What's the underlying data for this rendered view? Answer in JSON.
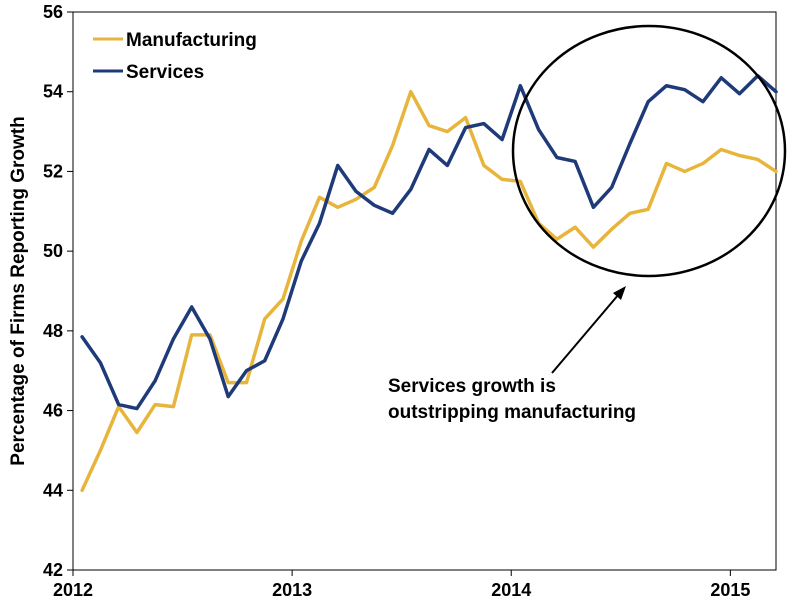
{
  "chart_data": {
    "type": "line",
    "title": "",
    "xlabel": "",
    "ylabel": "Percentage of Firms Reporting Growth",
    "ylim": [
      42,
      56
    ],
    "y_ticks": [
      42,
      44,
      46,
      48,
      50,
      52,
      54,
      56
    ],
    "x_ticks": [
      {
        "label": "2012",
        "month": 0
      },
      {
        "label": "2013",
        "month": 12
      },
      {
        "label": "2014",
        "month": 24
      },
      {
        "label": "2015",
        "month": 36
      }
    ],
    "x_range_months": [
      0,
      38.5
    ],
    "grid": false,
    "legend_position": "top-left",
    "series": [
      {
        "name": "Manufacturing",
        "color": "#E8B53C",
        "values": [
          44.0,
          45.0,
          46.1,
          45.45,
          46.15,
          46.1,
          47.9,
          47.9,
          46.7,
          46.7,
          48.3,
          48.8,
          50.25,
          51.35,
          51.1,
          51.3,
          51.6,
          52.65,
          54.0,
          53.15,
          53.0,
          53.35,
          52.15,
          51.8,
          51.75,
          50.7,
          50.3,
          50.6,
          50.1,
          50.55,
          50.95,
          51.05,
          52.2,
          52.0,
          52.2,
          52.55,
          52.4,
          52.3,
          52.0
        ]
      },
      {
        "name": "Services",
        "color": "#1F3A78",
        "values": [
          47.85,
          47.2,
          46.15,
          46.05,
          46.75,
          47.8,
          48.6,
          47.8,
          46.35,
          47.0,
          47.25,
          48.3,
          49.75,
          50.7,
          52.15,
          51.5,
          51.15,
          50.95,
          51.55,
          52.55,
          52.15,
          53.1,
          53.2,
          52.8,
          54.15,
          53.05,
          52.35,
          52.25,
          51.1,
          51.6,
          52.7,
          53.75,
          54.15,
          54.05,
          53.75,
          54.35,
          53.95,
          54.4,
          54.0
        ]
      }
    ],
    "annotation": {
      "line1": "Services growth is",
      "line2": "outstripping manufacturing"
    }
  }
}
